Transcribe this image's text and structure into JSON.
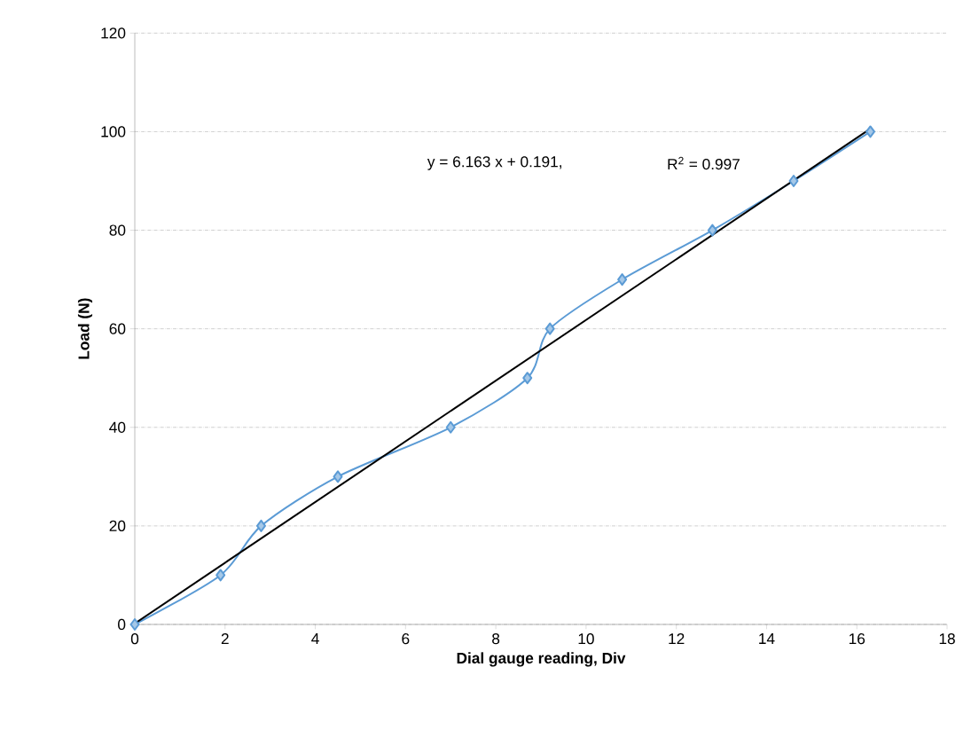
{
  "chart_data": {
    "type": "line",
    "xlabel": "Dial gauge reading, Div",
    "ylabel": "Load (N)",
    "x": [
      0,
      1.9,
      2.8,
      4.5,
      7.0,
      8.7,
      9.2,
      10.8,
      12.8,
      14.6,
      16.3
    ],
    "series": [
      {
        "color": "#5b9bd5",
        "values": [
          0,
          10,
          20,
          30,
          40,
          50,
          60,
          70,
          80,
          90,
          100
        ],
        "marker": "diamond",
        "line_style": "solid"
      },
      {
        "type": "line",
        "color": "#000000",
        "x": [
          0,
          16.3
        ],
        "values": [
          0.2,
          100.6
        ],
        "marker": "none",
        "line_style": "solid"
      }
    ],
    "annotations": [
      "y = 6.163 x + 0.191,",
      "R$^{2}$ = 0.997"
    ],
    "xlim": [
      0,
      18
    ],
    "ylim": [
      0,
      120
    ],
    "xticks": [
      0,
      2,
      4,
      6,
      8,
      10,
      12,
      14,
      16,
      18
    ],
    "yticks": [
      0,
      20,
      40,
      60,
      80,
      100,
      120
    ],
    "grid": "y"
  }
}
